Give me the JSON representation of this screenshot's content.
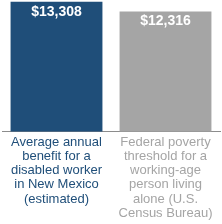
{
  "chart_data": {
    "type": "bar",
    "categories": [
      "Average annual benefit for a disabled worker in New Mexico (estimated)",
      "Federal poverty threshold for a working-age person living alone (U.S. Census Bureau)"
    ],
    "values": [
      13308,
      12316
    ],
    "value_labels": [
      "$13,308",
      "$12,316"
    ],
    "colors": [
      "#1f4e79",
      "#a5a5a5"
    ],
    "ylim": [
      0,
      13500
    ],
    "grid": false,
    "data_labels": true,
    "tick_labels": "x"
  }
}
